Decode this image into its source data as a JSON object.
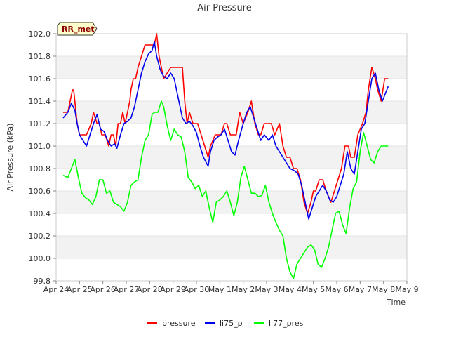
{
  "chart_data": {
    "type": "line",
    "title": "Air Pressure",
    "xlabel": "Time",
    "ylabel": "Air Pressure (kPa)",
    "site_label": "RR_met",
    "ylim": [
      99.8,
      102.0
    ],
    "xlim": [
      0,
      15
    ],
    "yticks": [
      99.8,
      100.0,
      100.2,
      100.4,
      100.6,
      100.8,
      101.0,
      101.2,
      101.4,
      101.6,
      101.8,
      102.0
    ],
    "ytick_labels": [
      "99.8",
      "100.0",
      "100.2",
      "100.4",
      "100.6",
      "100.8",
      "101.0",
      "101.2",
      "101.4",
      "101.6",
      "101.8",
      "102.0"
    ],
    "xtick_positions": [
      0,
      1,
      2,
      3,
      4,
      5,
      6,
      7,
      8,
      9,
      10,
      11,
      12,
      13,
      14,
      15
    ],
    "xtick_labels": [
      "Apr 24",
      "Apr 25",
      "Apr 26",
      "Apr 27",
      "Apr 28",
      "Apr 29",
      "Apr 30",
      "May 1",
      "May 2",
      "May 3",
      "May 4",
      "May 5",
      "May 6",
      "May 7",
      "May 8",
      "May 9"
    ],
    "grid": "horizontal bands",
    "legend_position": "bottom",
    "series": [
      {
        "name": "pressure",
        "color": "#ff0000",
        "x": [
          0.3,
          0.5,
          0.6,
          0.7,
          0.75,
          0.8,
          0.85,
          0.9,
          1.0,
          1.1,
          1.3,
          1.5,
          1.6,
          1.75,
          1.85,
          1.95,
          2.1,
          2.25,
          2.35,
          2.45,
          2.55,
          2.65,
          2.75,
          2.85,
          2.95,
          3.05,
          3.15,
          3.2,
          3.3,
          3.4,
          3.5,
          3.65,
          3.8,
          3.95,
          4.05,
          4.2,
          4.3,
          4.4,
          4.6,
          4.9,
          5.1,
          5.25,
          5.4,
          5.5,
          5.6,
          5.7,
          5.85,
          6.05,
          6.2,
          6.35,
          6.5,
          6.6,
          6.8,
          6.95,
          7.05,
          7.2,
          7.3,
          7.45,
          7.7,
          7.85,
          8.0,
          8.2,
          8.35,
          8.5,
          8.65,
          8.75,
          8.9,
          9.05,
          9.2,
          9.35,
          9.55,
          9.7,
          9.85,
          10.0,
          10.15,
          10.3,
          10.45,
          10.6,
          10.75,
          10.9,
          11.0,
          11.1,
          11.25,
          11.4,
          11.55,
          11.75,
          11.9,
          12.05,
          12.2,
          12.35,
          12.5,
          12.6,
          12.75,
          12.9,
          13.1,
          13.25,
          13.35,
          13.5,
          13.65,
          13.75,
          13.9,
          14.05,
          14.2
        ],
        "values": [
          101.3,
          101.3,
          101.4,
          101.5,
          101.5,
          101.4,
          101.3,
          101.2,
          101.1,
          101.1,
          101.1,
          101.2,
          101.3,
          101.2,
          101.2,
          101.1,
          101.1,
          101.0,
          101.1,
          101.1,
          101.0,
          101.2,
          101.2,
          101.3,
          101.2,
          101.3,
          101.4,
          101.5,
          101.6,
          101.6,
          101.7,
          101.8,
          101.9,
          101.9,
          101.9,
          101.9,
          102.0,
          101.8,
          101.6,
          101.7,
          101.7,
          101.7,
          101.7,
          101.4,
          101.2,
          101.3,
          101.2,
          101.2,
          101.1,
          101.0,
          100.9,
          101.0,
          101.1,
          101.1,
          101.1,
          101.2,
          101.2,
          101.1,
          101.1,
          101.3,
          101.2,
          101.3,
          101.4,
          101.2,
          101.1,
          101.1,
          101.2,
          101.2,
          101.2,
          101.1,
          101.2,
          101.0,
          100.9,
          100.9,
          100.8,
          100.8,
          100.7,
          100.5,
          100.4,
          100.5,
          100.6,
          100.6,
          100.7,
          100.7,
          100.6,
          100.5,
          100.6,
          100.7,
          100.8,
          101.0,
          101.0,
          100.9,
          100.9,
          101.1,
          101.2,
          101.3,
          101.5,
          101.7,
          101.6,
          101.5,
          101.4,
          101.6,
          101.6
        ]
      },
      {
        "name": "li75_p",
        "color": "#0000ee",
        "x": [
          0.3,
          0.5,
          0.65,
          0.8,
          0.9,
          1.0,
          1.15,
          1.3,
          1.45,
          1.6,
          1.75,
          1.9,
          2.05,
          2.2,
          2.35,
          2.5,
          2.6,
          2.75,
          2.9,
          3.05,
          3.2,
          3.35,
          3.5,
          3.65,
          3.8,
          3.95,
          4.1,
          4.2,
          4.3,
          4.45,
          4.6,
          4.75,
          4.9,
          5.05,
          5.2,
          5.4,
          5.55,
          5.7,
          5.85,
          6.0,
          6.15,
          6.3,
          6.5,
          6.6,
          6.75,
          6.9,
          7.05,
          7.2,
          7.35,
          7.5,
          7.65,
          7.8,
          8.0,
          8.15,
          8.3,
          8.45,
          8.6,
          8.75,
          8.9,
          9.1,
          9.25,
          9.4,
          9.55,
          9.7,
          9.85,
          10.0,
          10.2,
          10.35,
          10.5,
          10.65,
          10.8,
          10.95,
          11.1,
          11.25,
          11.4,
          11.55,
          11.7,
          11.85,
          12.0,
          12.15,
          12.3,
          12.45,
          12.6,
          12.75,
          12.9,
          13.05,
          13.2,
          13.35,
          13.5,
          13.65,
          13.8,
          13.95,
          14.2
        ],
        "values": [
          101.25,
          101.3,
          101.38,
          101.32,
          101.2,
          101.1,
          101.05,
          101.0,
          101.1,
          101.2,
          101.28,
          101.15,
          101.13,
          101.05,
          101.0,
          101.02,
          100.98,
          101.1,
          101.2,
          101.22,
          101.25,
          101.35,
          101.5,
          101.65,
          101.75,
          101.82,
          101.85,
          101.93,
          101.8,
          101.68,
          101.62,
          101.6,
          101.65,
          101.6,
          101.45,
          101.25,
          101.2,
          101.22,
          101.18,
          101.12,
          101.0,
          100.9,
          100.82,
          100.95,
          101.05,
          101.08,
          101.1,
          101.15,
          101.05,
          100.95,
          100.92,
          101.05,
          101.2,
          101.3,
          101.35,
          101.25,
          101.15,
          101.05,
          101.1,
          101.05,
          101.1,
          101.0,
          100.95,
          100.9,
          100.85,
          100.8,
          100.78,
          100.75,
          100.65,
          100.5,
          100.35,
          100.45,
          100.55,
          100.6,
          100.65,
          100.6,
          100.52,
          100.5,
          100.55,
          100.65,
          100.75,
          100.95,
          100.8,
          100.75,
          100.95,
          101.15,
          101.2,
          101.4,
          101.6,
          101.65,
          101.5,
          101.4,
          101.53
        ]
      },
      {
        "name": "li77_pres",
        "color": "#00ff00",
        "x": [
          0.3,
          0.5,
          0.65,
          0.8,
          0.95,
          1.1,
          1.25,
          1.4,
          1.55,
          1.7,
          1.85,
          2.0,
          2.15,
          2.3,
          2.45,
          2.6,
          2.75,
          2.9,
          3.05,
          3.2,
          3.35,
          3.5,
          3.65,
          3.8,
          3.95,
          4.1,
          4.2,
          4.35,
          4.5,
          4.6,
          4.75,
          4.9,
          5.05,
          5.2,
          5.35,
          5.5,
          5.65,
          5.8,
          5.95,
          6.1,
          6.25,
          6.4,
          6.55,
          6.7,
          6.85,
          7.0,
          7.15,
          7.3,
          7.45,
          7.6,
          7.75,
          7.9,
          8.05,
          8.2,
          8.35,
          8.5,
          8.65,
          8.8,
          8.95,
          9.1,
          9.25,
          9.4,
          9.55,
          9.7,
          9.85,
          10.0,
          10.15,
          10.3,
          10.45,
          10.6,
          10.75,
          10.9,
          11.05,
          11.2,
          11.35,
          11.5,
          11.65,
          11.8,
          11.95,
          12.1,
          12.25,
          12.4,
          12.55,
          12.7,
          12.85,
          13.0,
          13.15,
          13.3,
          13.45,
          13.6,
          13.75,
          13.9,
          14.05,
          14.2
        ],
        "values": [
          100.74,
          100.72,
          100.8,
          100.88,
          100.72,
          100.58,
          100.54,
          100.52,
          100.48,
          100.55,
          100.7,
          100.7,
          100.58,
          100.6,
          100.5,
          100.48,
          100.46,
          100.42,
          100.5,
          100.65,
          100.68,
          100.7,
          100.9,
          101.05,
          101.1,
          101.28,
          101.3,
          101.3,
          101.4,
          101.35,
          101.18,
          101.05,
          101.15,
          101.1,
          101.08,
          100.95,
          100.72,
          100.68,
          100.62,
          100.65,
          100.55,
          100.6,
          100.45,
          100.32,
          100.5,
          100.52,
          100.55,
          100.6,
          100.5,
          100.38,
          100.5,
          100.72,
          100.82,
          100.7,
          100.58,
          100.58,
          100.55,
          100.56,
          100.65,
          100.5,
          100.4,
          100.32,
          100.25,
          100.2,
          100.0,
          99.88,
          99.82,
          99.95,
          100.0,
          100.05,
          100.1,
          100.12,
          100.08,
          99.95,
          99.92,
          100.0,
          100.1,
          100.25,
          100.4,
          100.42,
          100.3,
          100.22,
          100.45,
          100.62,
          100.68,
          100.95,
          101.12,
          101.0,
          100.88,
          100.85,
          100.95,
          101.0,
          101.0,
          101.0
        ]
      }
    ]
  }
}
